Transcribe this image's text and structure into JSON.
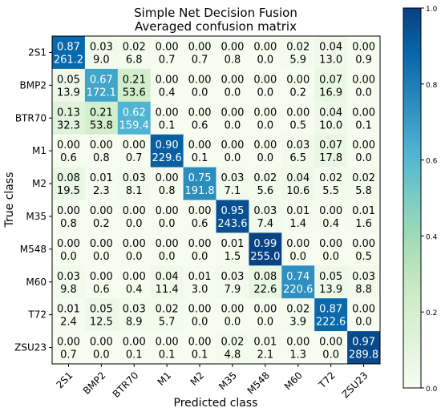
{
  "chart_data": {
    "type": "heatmap",
    "title": "Simple Net Decision Fusion",
    "subtitle": "Averaged confusion matrix",
    "xlabel": "Predicted class",
    "ylabel": "True class",
    "x_categories": [
      "2S1",
      "BMP2",
      "BTR70",
      "M1",
      "M2",
      "M35",
      "M548",
      "M60",
      "T72",
      "ZSU23"
    ],
    "y_categories": [
      "2S1",
      "BMP2",
      "BTR70",
      "M1",
      "M2",
      "M35",
      "M548",
      "M60",
      "T72",
      "ZSU23"
    ],
    "ratios": [
      [
        "0.87",
        "0.03",
        "0.02",
        "0.00",
        "0.00",
        "0.00",
        "0.00",
        "0.02",
        "0.04",
        "0.00"
      ],
      [
        "0.05",
        "0.67",
        "0.21",
        "0.00",
        "0.00",
        "0.00",
        "0.00",
        "0.00",
        "0.07",
        "0.00"
      ],
      [
        "0.13",
        "0.21",
        "0.62",
        "0.00",
        "0.00",
        "0.00",
        "0.00",
        "0.00",
        "0.04",
        "0.00"
      ],
      [
        "0.00",
        "0.00",
        "0.00",
        "0.90",
        "0.00",
        "0.00",
        "0.00",
        "0.03",
        "0.07",
        "0.00"
      ],
      [
        "0.08",
        "0.01",
        "0.03",
        "0.00",
        "0.75",
        "0.03",
        "0.02",
        "0.04",
        "0.02",
        "0.02"
      ],
      [
        "0.00",
        "0.00",
        "0.00",
        "0.00",
        "0.00",
        "0.95",
        "0.03",
        "0.01",
        "0.00",
        "0.01"
      ],
      [
        "0.00",
        "0.00",
        "0.00",
        "0.00",
        "0.00",
        "0.01",
        "0.99",
        "0.00",
        "0.00",
        "0.00"
      ],
      [
        "0.03",
        "0.00",
        "0.00",
        "0.04",
        "0.01",
        "0.03",
        "0.08",
        "0.74",
        "0.05",
        "0.03"
      ],
      [
        "0.01",
        "0.05",
        "0.03",
        "0.02",
        "0.00",
        "0.00",
        "0.00",
        "0.02",
        "0.87",
        "0.00"
      ],
      [
        "0.00",
        "0.00",
        "0.00",
        "0.00",
        "0.00",
        "0.02",
        "0.01",
        "0.00",
        "0.00",
        "0.97"
      ]
    ],
    "counts": [
      [
        "261.2",
        "9.0",
        "6.8",
        "0.7",
        "0.7",
        "0.8",
        "0.0",
        "5.9",
        "13.0",
        "0.9"
      ],
      [
        "13.9",
        "172.1",
        "53.6",
        "0.4",
        "0.0",
        "0.0",
        "0.0",
        "0.2",
        "16.9",
        "0.0"
      ],
      [
        "32.3",
        "53.8",
        "159.4",
        "0.1",
        "0.6",
        "0.0",
        "0.0",
        "0.5",
        "10.0",
        "0.1"
      ],
      [
        "0.6",
        "0.8",
        "0.7",
        "229.6",
        "0.1",
        "0.0",
        "0.0",
        "6.5",
        "17.8",
        "0.0"
      ],
      [
        "19.5",
        "2.3",
        "8.1",
        "0.8",
        "191.8",
        "7.1",
        "5.6",
        "10.6",
        "5.5",
        "5.8"
      ],
      [
        "0.8",
        "0.2",
        "0.0",
        "0.0",
        "0.6",
        "243.6",
        "7.4",
        "1.4",
        "0.4",
        "1.6"
      ],
      [
        "0.0",
        "0.0",
        "0.0",
        "0.0",
        "0.0",
        "1.5",
        "255.0",
        "0.0",
        "0.0",
        "0.5"
      ],
      [
        "9.8",
        "0.6",
        "0.4",
        "11.4",
        "3.0",
        "7.9",
        "22.6",
        "220.6",
        "13.9",
        "8.8"
      ],
      [
        "2.4",
        "12.5",
        "8.9",
        "5.7",
        "0.0",
        "0.0",
        "0.0",
        "3.9",
        "222.6",
        "0.0"
      ],
      [
        "0.7",
        "0.0",
        "0.1",
        "0.1",
        "0.1",
        "4.8",
        "2.1",
        "1.3",
        "0.0",
        "289.8"
      ]
    ],
    "colorbar": {
      "range": [
        0.0,
        1.0
      ],
      "ticks": [
        "0.0",
        "0.2",
        "0.4",
        "0.6",
        "0.8",
        "1.0"
      ],
      "colormap": "GnBu",
      "low_color": "#f7fcf0",
      "high_color": "#084081"
    },
    "text_colors": {
      "dark": "#000000",
      "light": "#ffffff"
    }
  }
}
